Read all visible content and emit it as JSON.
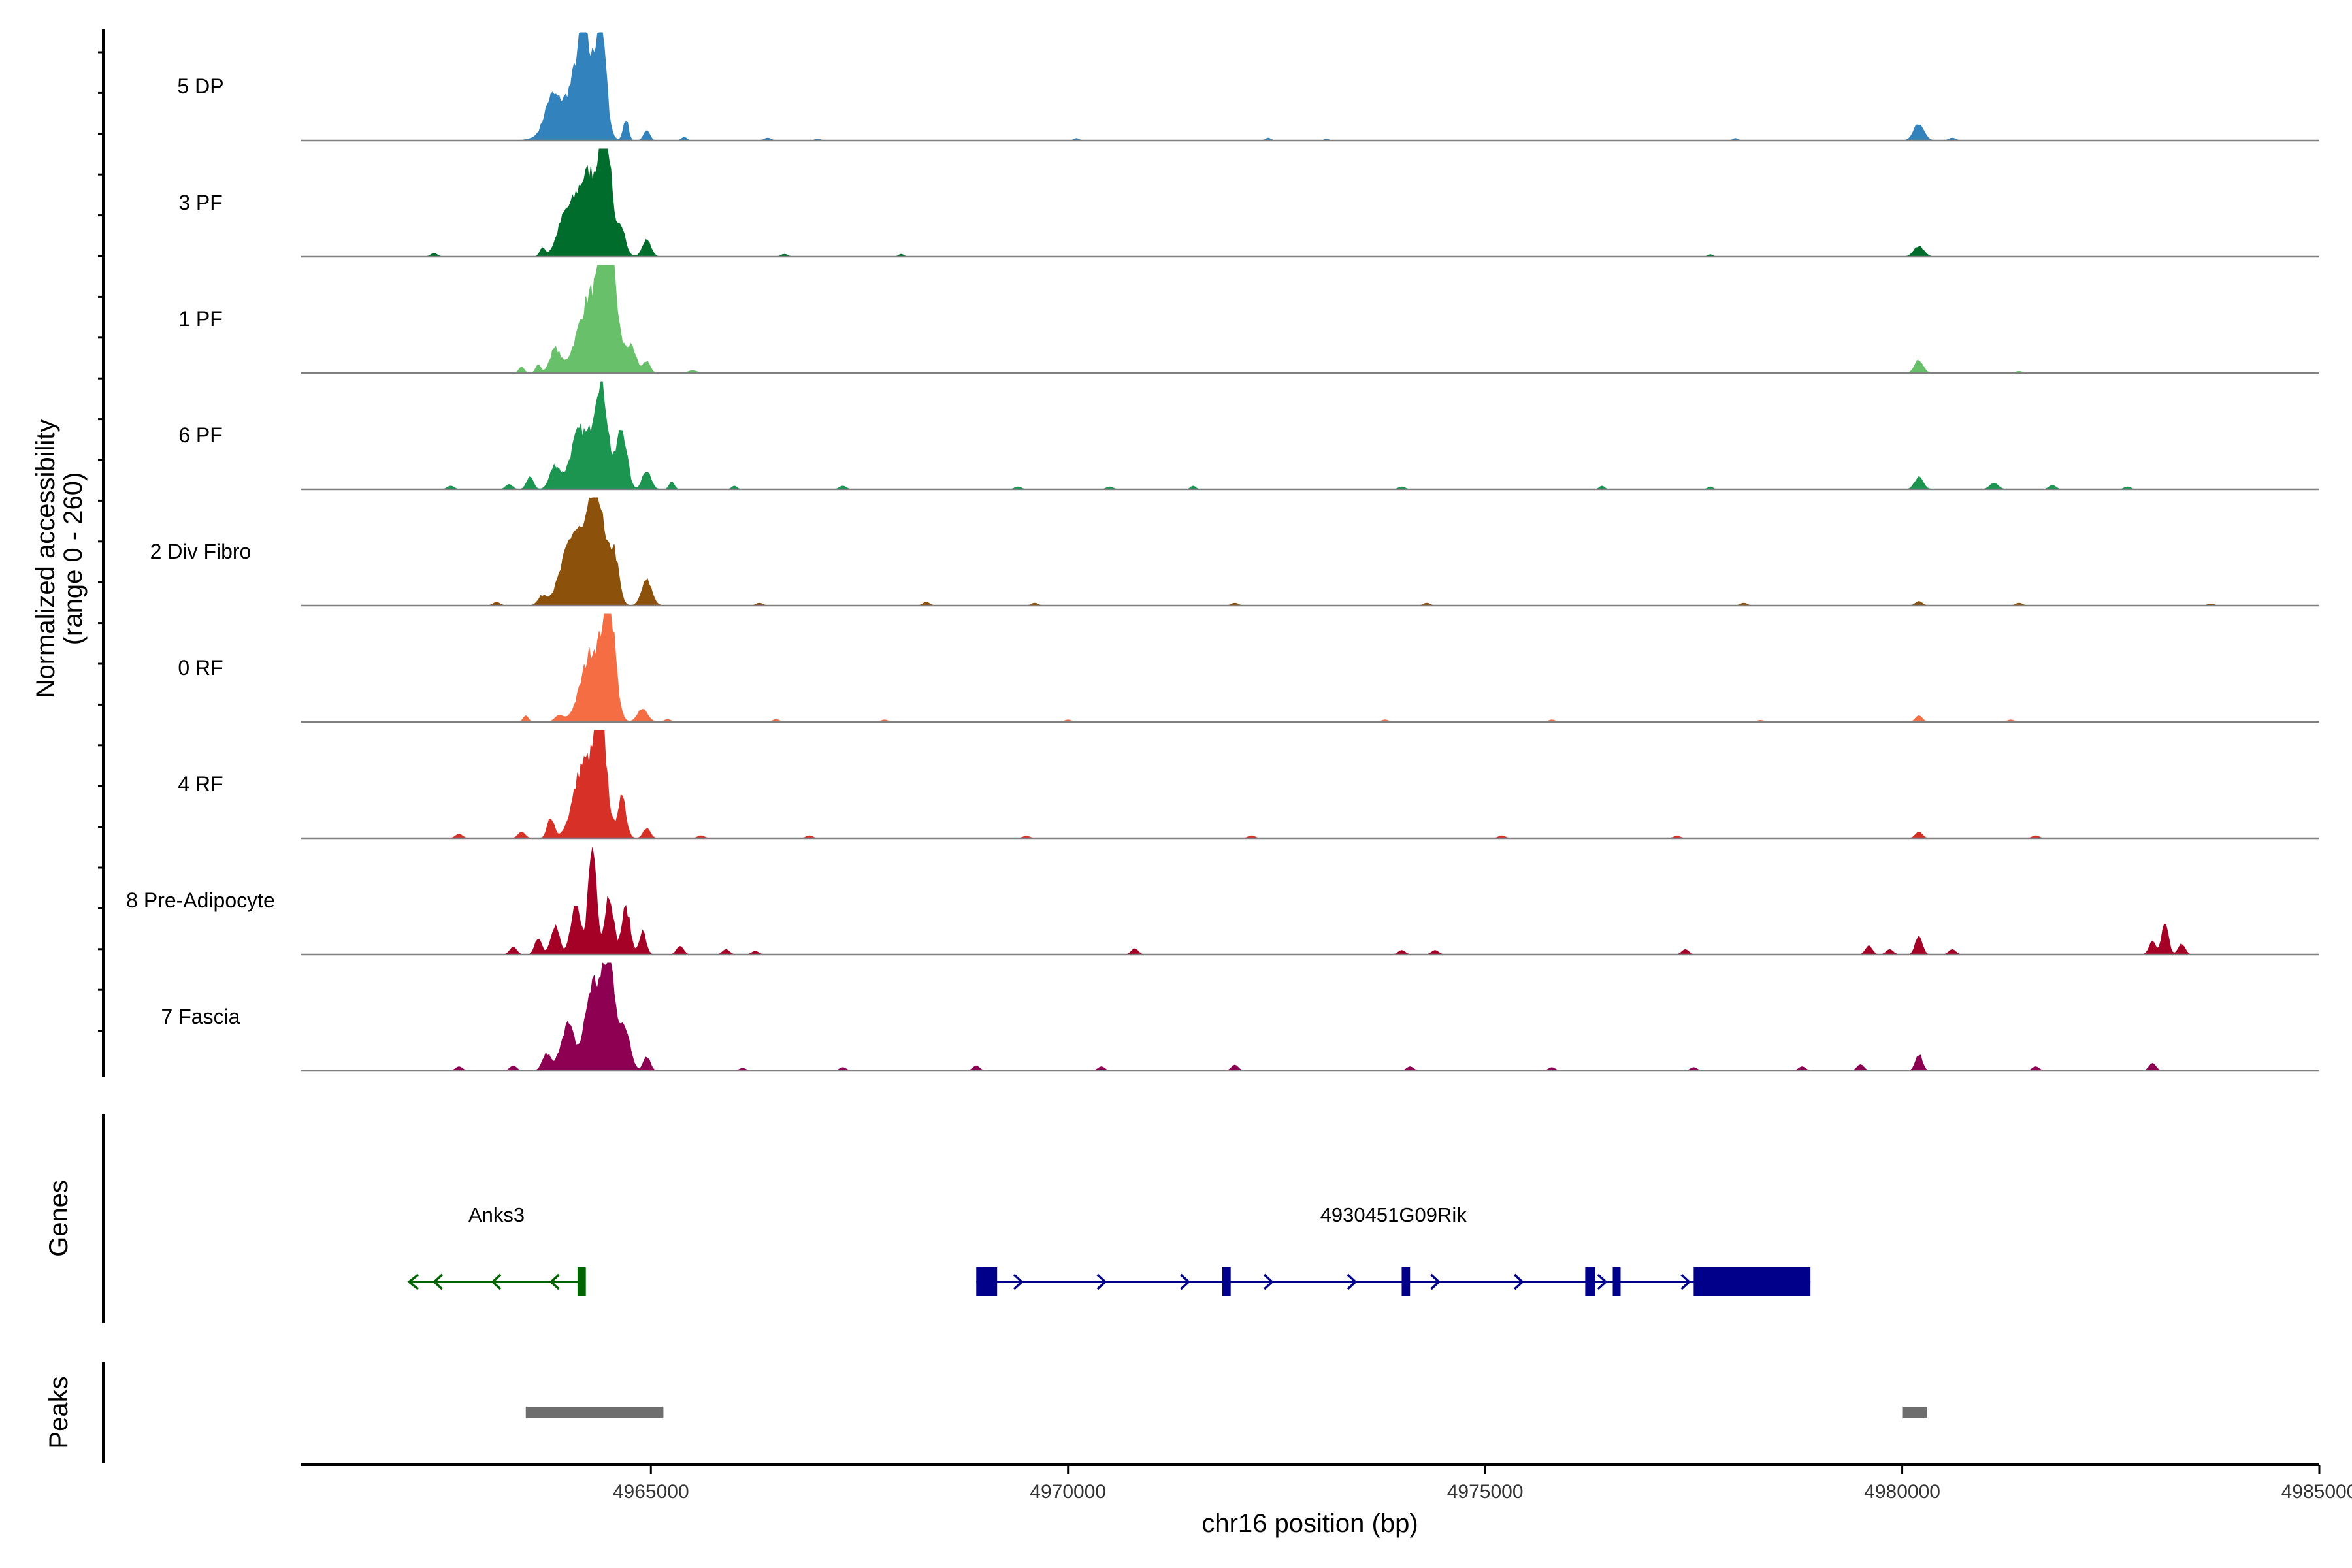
{
  "chart_data": {
    "type": "area",
    "title": "",
    "ylabel": "Normalized accessibility\n(range 0 - 260)",
    "ylabel_lines": [
      "Normalized accessibility",
      "(range 0 - 260)"
    ],
    "xlabel": "chr16 position (bp)",
    "chromosome": "chr16",
    "xlim": [
      4960800,
      4985000
    ],
    "ylim": [
      0,
      260
    ],
    "x_ticks": [
      4965000,
      4970000,
      4975000,
      4980000,
      4985000
    ],
    "x_tick_labels": [
      "4965000",
      "4970000",
      "4975000",
      "4980000",
      "4985000"
    ],
    "series": [
      {
        "name": "5 DP",
        "color": "#3182bd",
        "peaks": [
          [
            4963800,
            75,
            60
          ],
          [
            4964050,
            200,
            100
          ],
          [
            4964200,
            90,
            180
          ],
          [
            4964400,
            60,
            255
          ],
          [
            4964700,
            30,
            50
          ],
          [
            4964950,
            35,
            25
          ],
          [
            4965400,
            30,
            8
          ],
          [
            4966400,
            40,
            6
          ],
          [
            4967000,
            30,
            4
          ],
          [
            4970100,
            30,
            5
          ],
          [
            4972400,
            30,
            6
          ],
          [
            4973100,
            25,
            4
          ],
          [
            4978000,
            30,
            5
          ],
          [
            4980200,
            60,
            40
          ],
          [
            4980600,
            40,
            6
          ]
        ]
      },
      {
        "name": "3 PF",
        "color": "#006d2c",
        "peaks": [
          [
            4963700,
            30,
            20
          ],
          [
            4963950,
            80,
            50
          ],
          [
            4964250,
            180,
            200
          ],
          [
            4964450,
            60,
            250
          ],
          [
            4964650,
            45,
            60
          ],
          [
            4964950,
            50,
            40
          ],
          [
            4962400,
            40,
            8
          ],
          [
            4966600,
            40,
            6
          ],
          [
            4968000,
            30,
            6
          ],
          [
            4977700,
            30,
            5
          ],
          [
            4980200,
            60,
            25
          ]
        ]
      },
      {
        "name": "1 PF",
        "color": "#69c06a",
        "peaks": [
          [
            4963450,
            30,
            15
          ],
          [
            4963650,
            30,
            20
          ],
          [
            4963850,
            60,
            55
          ],
          [
            4964300,
            160,
            190
          ],
          [
            4964500,
            80,
            255
          ],
          [
            4964750,
            70,
            60
          ],
          [
            4964950,
            40,
            28
          ],
          [
            4965500,
            50,
            6
          ],
          [
            4980200,
            50,
            30
          ],
          [
            4981400,
            40,
            4
          ]
        ]
      },
      {
        "name": "6 PF",
        "color": "#1b9550",
        "peaks": [
          [
            4962600,
            40,
            8
          ],
          [
            4963300,
            40,
            12
          ],
          [
            4963550,
            40,
            30
          ],
          [
            4963850,
            60,
            55
          ],
          [
            4964150,
            110,
            140
          ],
          [
            4964400,
            80,
            255
          ],
          [
            4964650,
            60,
            145
          ],
          [
            4964950,
            50,
            45
          ],
          [
            4965250,
            30,
            18
          ],
          [
            4966000,
            30,
            8
          ],
          [
            4967300,
            40,
            8
          ],
          [
            4969400,
            40,
            6
          ],
          [
            4970500,
            40,
            6
          ],
          [
            4971500,
            30,
            8
          ],
          [
            4974000,
            40,
            6
          ],
          [
            4976400,
            30,
            8
          ],
          [
            4977700,
            30,
            6
          ],
          [
            4980200,
            50,
            30
          ],
          [
            4981100,
            50,
            15
          ],
          [
            4981800,
            40,
            10
          ],
          [
            4982700,
            40,
            6
          ]
        ]
      },
      {
        "name": "2 Div Fibro",
        "color": "#8c510a",
        "peaks": [
          [
            4963150,
            40,
            8
          ],
          [
            4963700,
            50,
            20
          ],
          [
            4964100,
            150,
            180
          ],
          [
            4964350,
            80,
            255
          ],
          [
            4964550,
            60,
            130
          ],
          [
            4964950,
            60,
            60
          ],
          [
            4966300,
            40,
            6
          ],
          [
            4968300,
            40,
            8
          ],
          [
            4969600,
            40,
            6
          ],
          [
            4972000,
            40,
            6
          ],
          [
            4974300,
            40,
            6
          ],
          [
            4978100,
            40,
            6
          ],
          [
            4980200,
            40,
            10
          ],
          [
            4981400,
            40,
            6
          ],
          [
            4983700,
            40,
            4
          ]
        ]
      },
      {
        "name": "0 RF",
        "color": "#f46d43",
        "peaks": [
          [
            4963500,
            30,
            15
          ],
          [
            4963900,
            50,
            15
          ],
          [
            4964300,
            130,
            170
          ],
          [
            4964500,
            70,
            255
          ],
          [
            4964900,
            60,
            30
          ],
          [
            4965200,
            40,
            6
          ],
          [
            4966500,
            40,
            6
          ],
          [
            4967800,
            40,
            5
          ],
          [
            4970000,
            40,
            5
          ],
          [
            4973800,
            40,
            5
          ],
          [
            4975800,
            40,
            5
          ],
          [
            4978300,
            40,
            4
          ],
          [
            4980200,
            40,
            15
          ],
          [
            4981300,
            40,
            5
          ]
        ]
      },
      {
        "name": "4 RF",
        "color": "#d73027",
        "peaks": [
          [
            4962700,
            40,
            10
          ],
          [
            4963450,
            40,
            15
          ],
          [
            4963800,
            40,
            50
          ],
          [
            4964200,
            120,
            180
          ],
          [
            4964400,
            70,
            255
          ],
          [
            4964650,
            50,
            95
          ],
          [
            4964950,
            40,
            25
          ],
          [
            4965600,
            40,
            6
          ],
          [
            4966900,
            40,
            6
          ],
          [
            4969500,
            40,
            5
          ],
          [
            4972200,
            40,
            6
          ],
          [
            4975200,
            40,
            6
          ],
          [
            4977300,
            40,
            5
          ],
          [
            4980200,
            40,
            15
          ],
          [
            4981600,
            40,
            6
          ]
        ]
      },
      {
        "name": "8 Pre-Adipocyte",
        "color": "#a50026",
        "peaks": [
          [
            4963350,
            40,
            18
          ],
          [
            4963650,
            40,
            40
          ],
          [
            4963850,
            50,
            70
          ],
          [
            4964100,
            60,
            110
          ],
          [
            4964300,
            50,
            255
          ],
          [
            4964500,
            50,
            145
          ],
          [
            4964700,
            50,
            110
          ],
          [
            4964900,
            40,
            55
          ],
          [
            4965350,
            40,
            20
          ],
          [
            4965900,
            40,
            12
          ],
          [
            4966250,
            40,
            8
          ],
          [
            4970800,
            40,
            14
          ],
          [
            4974000,
            40,
            10
          ],
          [
            4974400,
            40,
            10
          ],
          [
            4977400,
            40,
            12
          ],
          [
            4979600,
            40,
            20
          ],
          [
            4979850,
            40,
            12
          ],
          [
            4980200,
            40,
            45
          ],
          [
            4980600,
            40,
            12
          ],
          [
            4983000,
            40,
            30
          ],
          [
            4983150,
            40,
            70
          ],
          [
            4983350,
            40,
            25
          ]
        ]
      },
      {
        "name": "7 Fascia",
        "color": "#8e0152",
        "peaks": [
          [
            4962700,
            40,
            10
          ],
          [
            4963350,
            40,
            12
          ],
          [
            4963750,
            50,
            40
          ],
          [
            4964000,
            80,
            110
          ],
          [
            4964300,
            90,
            200
          ],
          [
            4964500,
            80,
            255
          ],
          [
            4964700,
            60,
            90
          ],
          [
            4964950,
            40,
            35
          ],
          [
            4966100,
            40,
            6
          ],
          [
            4967300,
            40,
            8
          ],
          [
            4968900,
            40,
            12
          ],
          [
            4970400,
            40,
            10
          ],
          [
            4972000,
            40,
            14
          ],
          [
            4974100,
            40,
            10
          ],
          [
            4975800,
            40,
            8
          ],
          [
            4977500,
            40,
            8
          ],
          [
            4978800,
            40,
            10
          ],
          [
            4979500,
            40,
            15
          ],
          [
            4980200,
            40,
            40
          ],
          [
            4981600,
            40,
            10
          ],
          [
            4983000,
            40,
            18
          ]
        ]
      }
    ],
    "genes": [
      {
        "name": "Anks3",
        "strand": "-",
        "start": 4962100,
        "end": 4964200,
        "color": "#006400",
        "exons": [
          [
            4964120,
            4964220
          ]
        ]
      },
      {
        "name": "4930451G09Rik",
        "strand": "+",
        "start": 4968900,
        "end": 4978900,
        "color": "#00008b",
        "exons": [
          [
            4968900,
            4969150
          ],
          [
            4971850,
            4971950
          ],
          [
            4974000,
            4974100
          ],
          [
            4976200,
            4976320
          ],
          [
            4976530,
            4976610
          ],
          [
            4977500,
            4978900
          ]
        ]
      }
    ],
    "peaks_track": [
      {
        "start": 4963500,
        "end": 4965150
      },
      {
        "start": 4980000,
        "end": 4980300
      }
    ],
    "track_titles": {
      "genes": "Genes",
      "peaks": "Peaks"
    },
    "colors": {
      "baseline": "#808080",
      "peak_bar": "#6e6e6e",
      "axis": "#000000"
    }
  }
}
